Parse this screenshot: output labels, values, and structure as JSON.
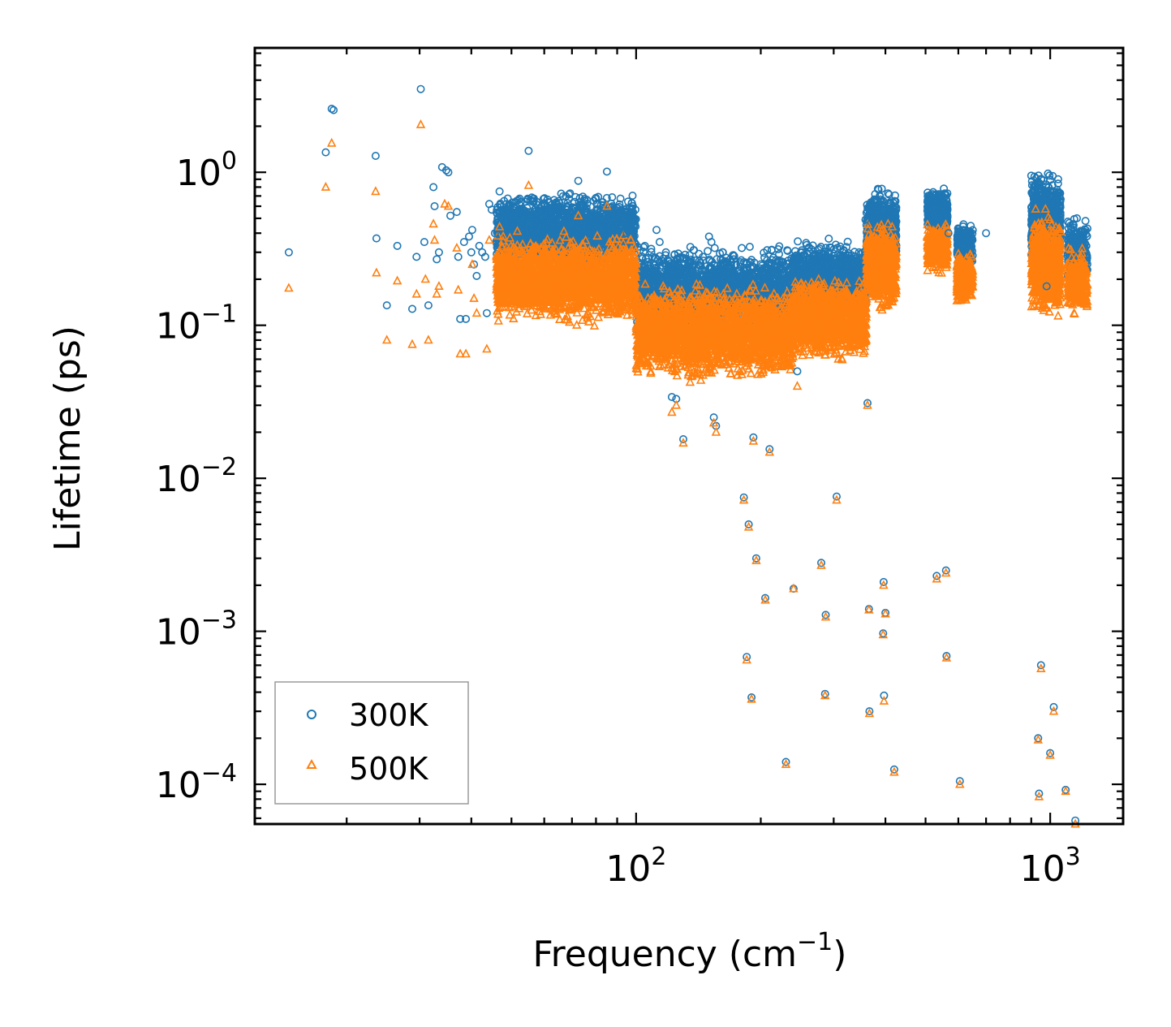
{
  "chart_data": {
    "type": "scatter",
    "title": "",
    "xlabel": "Frequency (cm",
    "xlabel_superscript": "−1",
    "xlabel_suffix": ")",
    "ylabel": "Lifetime (ps)",
    "xscale": "log",
    "yscale": "log",
    "xlim": [
      12,
      1500
    ],
    "ylim": [
      5.5e-05,
      6.5
    ],
    "xticks": [
      {
        "base": "10",
        "exp": "2",
        "value": 100
      },
      {
        "base": "10",
        "exp": "3",
        "value": 1000
      }
    ],
    "yticks": [
      {
        "base": "10",
        "exp": "0",
        "value": 1
      },
      {
        "base": "10",
        "exp": "−1",
        "value": 0.1
      },
      {
        "base": "10",
        "exp": "−2",
        "value": 0.01
      },
      {
        "base": "10",
        "exp": "−3",
        "value": 0.001
      },
      {
        "base": "10",
        "exp": "−4",
        "value": 0.0001
      }
    ],
    "legend_position": "lower-left",
    "series": [
      {
        "name": "300K",
        "marker": "circle",
        "color": "#1f77b4",
        "points": [
          [
            14.5,
            0.3
          ],
          [
            17.8,
            1.35
          ],
          [
            18.4,
            2.6
          ],
          [
            18.6,
            2.55
          ],
          [
            23.5,
            1.28
          ],
          [
            23.6,
            0.37
          ],
          [
            25.0,
            0.135
          ],
          [
            26.5,
            0.33
          ],
          [
            28.8,
            0.128
          ],
          [
            29.5,
            0.28
          ],
          [
            30.2,
            3.5
          ],
          [
            30.8,
            0.35
          ],
          [
            31.5,
            0.135
          ],
          [
            32.4,
            0.8
          ],
          [
            32.6,
            0.6
          ],
          [
            33.0,
            0.27
          ],
          [
            33.4,
            0.3
          ],
          [
            34.0,
            1.08
          ],
          [
            34.8,
            1.03
          ],
          [
            35.2,
            1.0
          ],
          [
            35.6,
            0.52
          ],
          [
            36.9,
            0.55
          ],
          [
            37.2,
            0.28
          ],
          [
            37.6,
            0.11
          ],
          [
            38.4,
            0.35
          ],
          [
            38.8,
            0.11
          ],
          [
            39.5,
            0.38
          ],
          [
            40.0,
            0.3
          ],
          [
            40.2,
            0.42
          ],
          [
            40.6,
            0.25
          ],
          [
            41.2,
            0.21
          ],
          [
            41.8,
            0.33
          ],
          [
            42.5,
            0.3
          ],
          [
            43.2,
            0.28
          ],
          [
            43.6,
            0.12
          ],
          [
            44.2,
            0.62
          ],
          [
            44.8,
            0.57
          ],
          [
            45.6,
            0.4
          ],
          [
            46.8,
            0.75
          ],
          [
            48.0,
            0.65
          ],
          [
            49.5,
            0.6
          ],
          [
            52.0,
            0.55
          ],
          [
            55.0,
            1.38
          ],
          [
            56.5,
            0.65
          ],
          [
            60.0,
            0.6
          ],
          [
            62.5,
            0.55
          ],
          [
            68.0,
            0.6
          ],
          [
            72.5,
            0.88
          ],
          [
            75.0,
            0.55
          ],
          [
            80.0,
            0.68
          ],
          [
            85.0,
            1.01
          ],
          [
            88.0,
            0.45
          ],
          [
            95.0,
            0.4
          ],
          [
            105.0,
            0.33
          ],
          [
            112.0,
            0.42
          ],
          [
            118.0,
            0.3
          ],
          [
            122.0,
            0.034
          ],
          [
            125.0,
            0.033
          ],
          [
            130.0,
            0.018
          ],
          [
            138.0,
            0.31
          ],
          [
            145.0,
            0.28
          ],
          [
            150.0,
            0.38
          ],
          [
            152.0,
            0.35
          ],
          [
            154.0,
            0.025
          ],
          [
            156.0,
            0.022
          ],
          [
            162.0,
            0.3
          ],
          [
            172.0,
            0.27
          ],
          [
            180.0,
            0.32
          ],
          [
            182.0,
            0.0075
          ],
          [
            185.0,
            0.00068
          ],
          [
            187.0,
            0.005
          ],
          [
            190.0,
            0.00037
          ],
          [
            192.0,
            0.0185
          ],
          [
            195.0,
            0.003
          ],
          [
            205.0,
            0.00165
          ],
          [
            210.0,
            0.0155
          ],
          [
            222.0,
            0.26
          ],
          [
            230.0,
            0.00014
          ],
          [
            240.0,
            0.0019
          ],
          [
            245.0,
            0.05
          ],
          [
            280.0,
            0.0028
          ],
          [
            286.0,
            0.00039
          ],
          [
            287.0,
            0.00128
          ],
          [
            305.0,
            0.0076
          ],
          [
            305.5,
            0.32
          ],
          [
            330.0,
            0.25
          ],
          [
            358.0,
            0.49
          ],
          [
            362.0,
            0.031
          ],
          [
            365.0,
            0.0014
          ],
          [
            366.0,
            0.0003
          ],
          [
            392.0,
            0.78
          ],
          [
            395.0,
            0.00097
          ],
          [
            396.0,
            0.0021
          ],
          [
            397.0,
            0.00038
          ],
          [
            400.0,
            0.00132
          ],
          [
            420.0,
            0.000125
          ],
          [
            520.0,
            0.72
          ],
          [
            532.0,
            0.0023
          ],
          [
            560.0,
            0.0025
          ],
          [
            562.0,
            0.00069
          ],
          [
            568.0,
            0.4
          ],
          [
            605.0,
            0.000105
          ],
          [
            700.0,
            0.4
          ],
          [
            900.0,
            0.95
          ],
          [
            935.0,
            0.0002
          ],
          [
            940.0,
            8.7e-05
          ],
          [
            950.0,
            0.0006
          ],
          [
            980.0,
            0.18
          ],
          [
            1000.0,
            0.00016
          ],
          [
            1020.0,
            0.00032
          ],
          [
            1045.0,
            0.9
          ],
          [
            1090.0,
            9.2e-05
          ],
          [
            1150.0,
            5.8e-05
          ],
          [
            1160.0,
            0.5
          ]
        ]
      },
      {
        "name": "500K",
        "marker": "triangle",
        "color": "#ff7f0e",
        "points": [
          [
            14.5,
            0.175
          ],
          [
            17.8,
            0.8
          ],
          [
            18.4,
            1.55
          ],
          [
            23.5,
            0.75
          ],
          [
            23.6,
            0.22
          ],
          [
            25.0,
            0.08
          ],
          [
            26.5,
            0.195
          ],
          [
            28.8,
            0.075
          ],
          [
            29.5,
            0.16
          ],
          [
            30.2,
            2.05
          ],
          [
            31.0,
            0.2
          ],
          [
            31.5,
            0.08
          ],
          [
            32.4,
            0.46
          ],
          [
            32.6,
            0.36
          ],
          [
            33.0,
            0.16
          ],
          [
            33.4,
            0.18
          ],
          [
            34.5,
            0.62
          ],
          [
            35.2,
            0.6
          ],
          [
            36.9,
            0.32
          ],
          [
            37.2,
            0.17
          ],
          [
            37.6,
            0.065
          ],
          [
            38.8,
            0.065
          ],
          [
            40.2,
            0.25
          ],
          [
            40.6,
            0.15
          ],
          [
            41.2,
            0.12
          ],
          [
            43.6,
            0.07
          ],
          [
            44.2,
            0.36
          ],
          [
            46.8,
            0.44
          ],
          [
            55.0,
            0.82
          ],
          [
            72.5,
            0.52
          ],
          [
            85.0,
            0.6
          ],
          [
            122.0,
            0.027
          ],
          [
            125.0,
            0.03
          ],
          [
            130.0,
            0.017
          ],
          [
            154.0,
            0.023
          ],
          [
            156.0,
            0.02
          ],
          [
            182.0,
            0.0072
          ],
          [
            185.0,
            0.00065
          ],
          [
            187.0,
            0.0048
          ],
          [
            190.0,
            0.00036
          ],
          [
            192.0,
            0.0175
          ],
          [
            195.0,
            0.0029
          ],
          [
            205.0,
            0.0016
          ],
          [
            210.0,
            0.0148
          ],
          [
            230.0,
            0.000135
          ],
          [
            240.0,
            0.0019
          ],
          [
            245.0,
            0.04
          ],
          [
            280.0,
            0.0027
          ],
          [
            286.0,
            0.00038
          ],
          [
            287.0,
            0.00124
          ],
          [
            305.0,
            0.0072
          ],
          [
            362.0,
            0.03
          ],
          [
            365.0,
            0.00138
          ],
          [
            366.0,
            0.00029
          ],
          [
            395.0,
            0.00095
          ],
          [
            396.0,
            0.002
          ],
          [
            397.0,
            0.00035
          ],
          [
            400.0,
            0.0013
          ],
          [
            420.0,
            0.00012
          ],
          [
            532.0,
            0.0022
          ],
          [
            560.0,
            0.0024
          ],
          [
            562.0,
            0.00067
          ],
          [
            605.0,
            0.0001
          ],
          [
            935.0,
            0.000195
          ],
          [
            940.0,
            8.3e-05
          ],
          [
            950.0,
            0.00057
          ],
          [
            980.0,
            0.13
          ],
          [
            1000.0,
            0.000155
          ],
          [
            1020.0,
            0.0003
          ],
          [
            1045.0,
            0.115
          ],
          [
            1090.0,
            9e-05
          ],
          [
            1150.0,
            5.5e-05
          ]
        ]
      }
    ],
    "dense_bands": [
      {
        "series": "300K",
        "x_range": [
          46,
          100
        ],
        "center": 0.42,
        "spread": 0.55,
        "count": 1800
      },
      {
        "series": "300K",
        "x_range": [
          100,
          240
        ],
        "center": 0.17,
        "spread": 0.65,
        "count": 2000
      },
      {
        "series": "300K",
        "x_range": [
          240,
          360
        ],
        "center": 0.2,
        "spread": 0.55,
        "count": 1200
      },
      {
        "series": "300K",
        "x_range": [
          360,
          425
        ],
        "center": 0.42,
        "spread": 0.6,
        "count": 700
      },
      {
        "series": "300K",
        "x_range": [
          505,
          565
        ],
        "center": 0.56,
        "spread": 0.35,
        "count": 350
      },
      {
        "series": "300K",
        "x_range": [
          595,
          650
        ],
        "center": 0.32,
        "spread": 0.4,
        "count": 250
      },
      {
        "series": "300K",
        "x_range": [
          900,
          1060
        ],
        "center": 0.48,
        "spread": 0.75,
        "count": 700
      },
      {
        "series": "300K",
        "x_range": [
          1100,
          1230
        ],
        "center": 0.3,
        "spread": 0.5,
        "count": 250
      },
      {
        "series": "500K",
        "x_range": [
          46,
          100
        ],
        "center": 0.2,
        "spread": 0.65,
        "count": 2000
      },
      {
        "series": "500K",
        "x_range": [
          100,
          240
        ],
        "center": 0.09,
        "spread": 0.7,
        "count": 2200
      },
      {
        "series": "500K",
        "x_range": [
          240,
          360
        ],
        "center": 0.11,
        "spread": 0.6,
        "count": 1300
      },
      {
        "series": "500K",
        "x_range": [
          360,
          425
        ],
        "center": 0.24,
        "spread": 0.65,
        "count": 700
      },
      {
        "series": "500K",
        "x_range": [
          505,
          565
        ],
        "center": 0.32,
        "spread": 0.35,
        "count": 350
      },
      {
        "series": "500K",
        "x_range": [
          595,
          650
        ],
        "center": 0.2,
        "spread": 0.4,
        "count": 250
      },
      {
        "series": "500K",
        "x_range": [
          900,
          1060
        ],
        "center": 0.25,
        "spread": 0.75,
        "count": 700
      },
      {
        "series": "500K",
        "x_range": [
          1100,
          1230
        ],
        "center": 0.19,
        "spread": 0.5,
        "count": 250
      }
    ]
  }
}
